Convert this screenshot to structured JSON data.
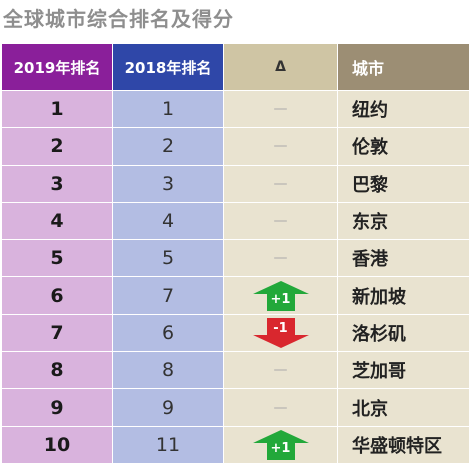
{
  "title": "全球城市综合排名及得分",
  "columns": {
    "rank_2019": "2019年排名",
    "rank_2018": "2018年排名",
    "delta": "Δ",
    "city": "城市"
  },
  "colors": {
    "up": "#22a83a",
    "down": "#d9272e"
  },
  "rows": [
    {
      "rank_2019": "1",
      "rank_2018": "1",
      "delta": "—",
      "delta_dir": "none",
      "city": "纽约"
    },
    {
      "rank_2019": "2",
      "rank_2018": "2",
      "delta": "—",
      "delta_dir": "none",
      "city": "伦敦"
    },
    {
      "rank_2019": "3",
      "rank_2018": "3",
      "delta": "—",
      "delta_dir": "none",
      "city": "巴黎"
    },
    {
      "rank_2019": "4",
      "rank_2018": "4",
      "delta": "—",
      "delta_dir": "none",
      "city": "东京"
    },
    {
      "rank_2019": "5",
      "rank_2018": "5",
      "delta": "—",
      "delta_dir": "none",
      "city": "香港"
    },
    {
      "rank_2019": "6",
      "rank_2018": "7",
      "delta": "+1",
      "delta_dir": "up",
      "city": "新加坡"
    },
    {
      "rank_2019": "7",
      "rank_2018": "6",
      "delta": "-1",
      "delta_dir": "down",
      "city": "洛杉矶"
    },
    {
      "rank_2019": "8",
      "rank_2018": "8",
      "delta": "—",
      "delta_dir": "none",
      "city": "芝加哥"
    },
    {
      "rank_2019": "9",
      "rank_2018": "9",
      "delta": "—",
      "delta_dir": "none",
      "city": "北京"
    },
    {
      "rank_2019": "10",
      "rank_2018": "11",
      "delta": "+1",
      "delta_dir": "up",
      "city": "华盛顿特区"
    }
  ]
}
